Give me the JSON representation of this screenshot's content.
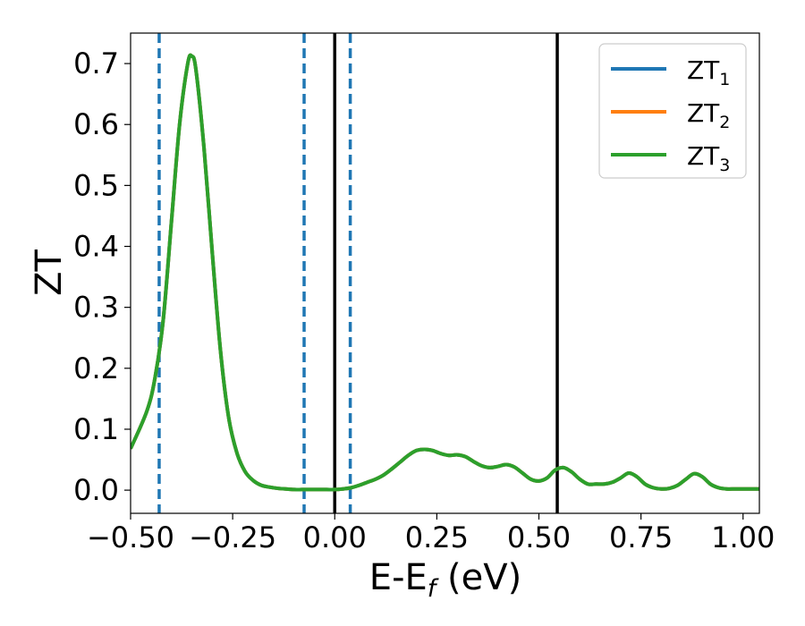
{
  "chart_data": {
    "type": "line",
    "title": "",
    "xlabel_main": "E-E",
    "xlabel_sub": "f",
    "xlabel_unit": "(eV)",
    "ylabel": "ZT",
    "xlim": [
      -0.5,
      1.04
    ],
    "ylim": [
      -0.038,
      0.75
    ],
    "xticks": [
      -0.5,
      -0.25,
      0.0,
      0.25,
      0.5,
      0.75,
      1.0
    ],
    "xtick_labels": [
      "−0.50",
      "−0.25",
      "0.00",
      "0.25",
      "0.50",
      "0.75",
      "1.00"
    ],
    "yticks": [
      0.0,
      0.1,
      0.2,
      0.3,
      0.4,
      0.5,
      0.6,
      0.7
    ],
    "ytick_labels": [
      "0.0",
      "0.1",
      "0.2",
      "0.3",
      "0.4",
      "0.5",
      "0.6",
      "0.7"
    ],
    "grid": false,
    "legend_placement": "top-right",
    "series": [
      {
        "name_main": "ZT",
        "name_sub": "1",
        "color": "#1f77b4"
      },
      {
        "name_main": "ZT",
        "name_sub": "2",
        "color": "#ff7f0e"
      },
      {
        "name_main": "ZT",
        "name_sub": "3",
        "color": "#2ca02c"
      }
    ],
    "curve": {
      "x": [
        -0.5,
        -0.46,
        -0.44,
        -0.42,
        -0.4,
        -0.38,
        -0.36,
        -0.35,
        -0.34,
        -0.32,
        -0.3,
        -0.28,
        -0.26,
        -0.24,
        -0.22,
        -0.2,
        -0.18,
        -0.16,
        -0.14,
        -0.12,
        -0.1,
        -0.08,
        -0.06,
        -0.04,
        -0.02,
        0.0,
        0.02,
        0.04,
        0.06,
        0.08,
        0.1,
        0.12,
        0.14,
        0.16,
        0.18,
        0.2,
        0.22,
        0.24,
        0.26,
        0.28,
        0.3,
        0.32,
        0.34,
        0.36,
        0.38,
        0.4,
        0.42,
        0.44,
        0.46,
        0.48,
        0.5,
        0.52,
        0.54,
        0.56,
        0.58,
        0.6,
        0.62,
        0.64,
        0.66,
        0.68,
        0.7,
        0.72,
        0.74,
        0.76,
        0.78,
        0.8,
        0.82,
        0.84,
        0.86,
        0.88,
        0.9,
        0.92,
        0.94,
        0.96,
        0.98,
        1.0,
        1.04
      ],
      "y": [
        0.068,
        0.13,
        0.185,
        0.28,
        0.44,
        0.6,
        0.7,
        0.712,
        0.69,
        0.56,
        0.39,
        0.23,
        0.12,
        0.062,
        0.031,
        0.016,
        0.008,
        0.005,
        0.003,
        0.002,
        0.001,
        0.001,
        0.001,
        0.001,
        0.001,
        0.001,
        0.002,
        0.004,
        0.008,
        0.013,
        0.018,
        0.025,
        0.035,
        0.046,
        0.057,
        0.065,
        0.067,
        0.065,
        0.06,
        0.057,
        0.058,
        0.055,
        0.047,
        0.04,
        0.037,
        0.039,
        0.042,
        0.038,
        0.028,
        0.018,
        0.015,
        0.02,
        0.033,
        0.037,
        0.03,
        0.018,
        0.01,
        0.01,
        0.01,
        0.013,
        0.02,
        0.028,
        0.022,
        0.01,
        0.004,
        0.002,
        0.003,
        0.008,
        0.018,
        0.027,
        0.022,
        0.01,
        0.004,
        0.002,
        0.002,
        0.002,
        0.002
      ]
    },
    "vlines_dashed": {
      "color": "#1f77b4",
      "x": [
        -0.43,
        -0.075,
        0.038
      ]
    },
    "vlines_solid": {
      "color": "#000000",
      "x": [
        0.0,
        0.545
      ]
    }
  }
}
